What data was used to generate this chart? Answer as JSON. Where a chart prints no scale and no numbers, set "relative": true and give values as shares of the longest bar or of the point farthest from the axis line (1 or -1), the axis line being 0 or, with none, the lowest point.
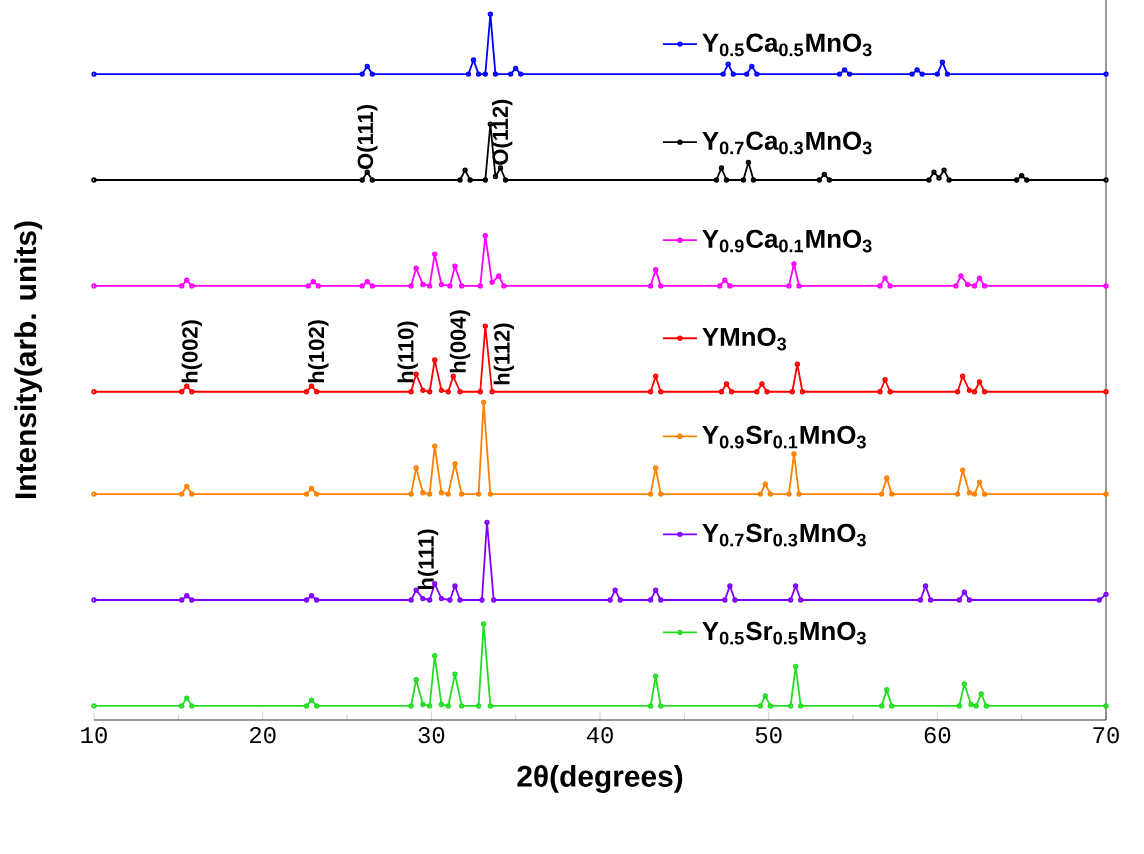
{
  "chart_data": {
    "type": "line",
    "relative": true,
    "xlabel": "2θ(degrees)",
    "ylabel": "Intensity(arb. units)",
    "xlim": [
      10,
      70
    ],
    "xticks": [
      10,
      20,
      30,
      40,
      50,
      60,
      70
    ],
    "marker": "circle",
    "legend": "right",
    "series": [
      {
        "name": "Y$_{0.5}$Ca$_{0.5}$MnO$_{3}$",
        "color": "#0000ff",
        "x": [
          10,
          25.9,
          26.2,
          26.5,
          32.2,
          32.5,
          32.8,
          33.2,
          33.5,
          33.8,
          34.7,
          35.0,
          35.3,
          47.3,
          47.6,
          47.9,
          48.7,
          49.0,
          49.3,
          54.2,
          54.5,
          54.8,
          58.5,
          58.8,
          59.1,
          60.0,
          60.3,
          60.6,
          70
        ],
        "values": [
          0.915,
          0.915,
          0.926,
          0.915,
          0.915,
          0.935,
          0.915,
          0.915,
          1.0,
          0.915,
          0.915,
          0.923,
          0.915,
          0.915,
          0.929,
          0.915,
          0.915,
          0.926,
          0.915,
          0.915,
          0.921,
          0.915,
          0.915,
          0.921,
          0.915,
          0.915,
          0.932,
          0.915,
          0.915
        ]
      },
      {
        "name": "Y$_{0.7}$Ca$_{0.3}$MnO$_{3}$",
        "color": "#000000",
        "x": [
          10,
          25.9,
          26.2,
          26.5,
          31.7,
          32.0,
          32.3,
          33.2,
          33.5,
          33.8,
          34.1,
          34.4,
          46.9,
          47.2,
          47.5,
          48.5,
          48.8,
          49.1,
          53.0,
          53.3,
          53.6,
          59.5,
          59.8,
          60.1,
          60.4,
          60.7,
          64.7,
          65.0,
          65.3,
          70
        ],
        "values": [
          0.765,
          0.765,
          0.776,
          0.765,
          0.765,
          0.779,
          0.765,
          0.765,
          0.844,
          0.77,
          0.782,
          0.765,
          0.765,
          0.782,
          0.765,
          0.765,
          0.79,
          0.765,
          0.765,
          0.773,
          0.765,
          0.765,
          0.776,
          0.768,
          0.779,
          0.765,
          0.765,
          0.771,
          0.765,
          0.765
        ]
      },
      {
        "name": "Y$_{0.9}$Ca$_{0.1}$MnO$_{3}$",
        "color": "#ff00ff",
        "x": [
          10,
          15.2,
          15.5,
          15.8,
          22.7,
          23.0,
          23.3,
          25.9,
          26.2,
          26.5,
          28.8,
          29.1,
          29.5,
          29.9,
          30.2,
          30.6,
          31.1,
          31.4,
          31.8,
          32.9,
          33.2,
          33.6,
          34.0,
          34.3,
          43.0,
          43.3,
          43.6,
          47.1,
          47.4,
          47.7,
          51.2,
          51.5,
          51.8,
          56.6,
          56.9,
          57.2,
          61.1,
          61.4,
          61.8,
          62.2,
          62.5,
          62.8,
          70
        ],
        "values": [
          0.615,
          0.615,
          0.623,
          0.615,
          0.615,
          0.621,
          0.615,
          0.615,
          0.621,
          0.615,
          0.615,
          0.64,
          0.617,
          0.615,
          0.66,
          0.617,
          0.615,
          0.643,
          0.615,
          0.615,
          0.686,
          0.62,
          0.629,
          0.615,
          0.615,
          0.638,
          0.615,
          0.615,
          0.623,
          0.615,
          0.615,
          0.646,
          0.615,
          0.615,
          0.626,
          0.615,
          0.615,
          0.629,
          0.617,
          0.615,
          0.626,
          0.615,
          0.615
        ]
      },
      {
        "name": "YMnO$_{3}$",
        "color": "#ff0000",
        "x": [
          10,
          15.2,
          15.5,
          15.8,
          22.6,
          22.9,
          23.2,
          28.8,
          29.1,
          29.5,
          29.9,
          30.2,
          30.6,
          31.0,
          31.3,
          31.7,
          32.9,
          33.2,
          33.6,
          43.0,
          43.3,
          43.6,
          47.2,
          47.5,
          47.8,
          49.3,
          49.6,
          49.9,
          51.4,
          51.7,
          52.0,
          56.6,
          56.9,
          57.2,
          61.2,
          61.5,
          61.9,
          62.2,
          62.5,
          62.8,
          70
        ],
        "values": [
          0.465,
          0.465,
          0.473,
          0.465,
          0.465,
          0.473,
          0.465,
          0.465,
          0.49,
          0.467,
          0.465,
          0.51,
          0.467,
          0.465,
          0.487,
          0.465,
          0.465,
          0.558,
          0.465,
          0.465,
          0.487,
          0.465,
          0.465,
          0.476,
          0.465,
          0.465,
          0.476,
          0.465,
          0.465,
          0.504,
          0.465,
          0.465,
          0.482,
          0.465,
          0.465,
          0.487,
          0.467,
          0.465,
          0.479,
          0.465,
          0.465
        ]
      },
      {
        "name": "Y$_{0.9}$Sr$_{0.1}$MnO$_{3}$",
        "color": "#ff8000",
        "x": [
          10,
          15.2,
          15.5,
          15.8,
          22.6,
          22.9,
          23.2,
          28.8,
          29.1,
          29.5,
          29.9,
          30.2,
          30.6,
          31.0,
          31.4,
          31.8,
          32.8,
          33.1,
          33.5,
          43.0,
          43.3,
          43.6,
          49.5,
          49.8,
          50.1,
          51.2,
          51.5,
          51.8,
          56.7,
          57.0,
          57.3,
          61.2,
          61.5,
          61.9,
          62.2,
          62.5,
          62.8,
          70
        ],
        "values": [
          0.32,
          0.32,
          0.331,
          0.32,
          0.32,
          0.328,
          0.32,
          0.32,
          0.357,
          0.322,
          0.32,
          0.388,
          0.322,
          0.32,
          0.363,
          0.32,
          0.32,
          0.45,
          0.32,
          0.32,
          0.357,
          0.32,
          0.32,
          0.334,
          0.32,
          0.32,
          0.377,
          0.32,
          0.32,
          0.343,
          0.32,
          0.32,
          0.354,
          0.322,
          0.32,
          0.337,
          0.32,
          0.32
        ]
      },
      {
        "name": "Y$_{0.7}$Sr$_{0.3}$MnO$_{3}$",
        "color": "#8000ff",
        "x": [
          10,
          15.2,
          15.5,
          15.8,
          22.6,
          22.9,
          23.2,
          28.8,
          29.1,
          29.5,
          29.9,
          30.2,
          30.6,
          31.1,
          31.4,
          31.7,
          33.0,
          33.3,
          33.7,
          40.6,
          40.9,
          41.2,
          43.0,
          43.3,
          43.6,
          47.4,
          47.7,
          48.0,
          51.3,
          51.6,
          51.9,
          59.0,
          59.3,
          59.6,
          61.3,
          61.6,
          61.9,
          69.6,
          70
        ],
        "values": [
          0.17,
          0.17,
          0.176,
          0.17,
          0.17,
          0.176,
          0.17,
          0.17,
          0.184,
          0.172,
          0.17,
          0.193,
          0.172,
          0.17,
          0.19,
          0.17,
          0.17,
          0.28,
          0.17,
          0.17,
          0.184,
          0.17,
          0.17,
          0.184,
          0.17,
          0.17,
          0.19,
          0.17,
          0.17,
          0.19,
          0.17,
          0.17,
          0.19,
          0.17,
          0.17,
          0.181,
          0.17,
          0.17,
          0.178
        ]
      },
      {
        "name": "Y$_{0.5}$Sr$_{0.5}$MnO$_{3}$",
        "color": "#22dd22",
        "x": [
          10,
          15.2,
          15.5,
          15.8,
          22.6,
          22.9,
          23.2,
          28.8,
          29.1,
          29.5,
          29.9,
          30.2,
          30.6,
          31.0,
          31.4,
          31.8,
          32.8,
          33.1,
          33.5,
          43.0,
          43.3,
          43.6,
          49.5,
          49.8,
          50.1,
          51.3,
          51.6,
          51.9,
          56.7,
          57.0,
          57.3,
          61.3,
          61.6,
          62.0,
          62.3,
          62.6,
          62.9,
          70
        ],
        "values": [
          0.02,
          0.02,
          0.031,
          0.02,
          0.02,
          0.028,
          0.02,
          0.02,
          0.057,
          0.022,
          0.02,
          0.091,
          0.022,
          0.02,
          0.065,
          0.02,
          0.02,
          0.136,
          0.02,
          0.02,
          0.062,
          0.02,
          0.02,
          0.034,
          0.02,
          0.02,
          0.076,
          0.02,
          0.02,
          0.043,
          0.02,
          0.02,
          0.051,
          0.022,
          0.02,
          0.037,
          0.02,
          0.02
        ]
      }
    ],
    "annotations": [
      {
        "text": "O(111)",
        "x": 26.2,
        "y": 0.776
      },
      {
        "text": "O(112)",
        "x": 34.2,
        "y": 0.782
      },
      {
        "text": "h(002)",
        "x": 15.8,
        "y": 0.473
      },
      {
        "text": "h(102)",
        "x": 23.3,
        "y": 0.473
      },
      {
        "text": "h(110)",
        "x": 28.6,
        "y": 0.473
      },
      {
        "text": "h(004)",
        "x": 31.7,
        "y": 0.487
      },
      {
        "text": "h(112)",
        "x": 34.3,
        "y": 0.47
      },
      {
        "text": "h(111)",
        "x": 29.8,
        "y": 0.18
      }
    ]
  }
}
